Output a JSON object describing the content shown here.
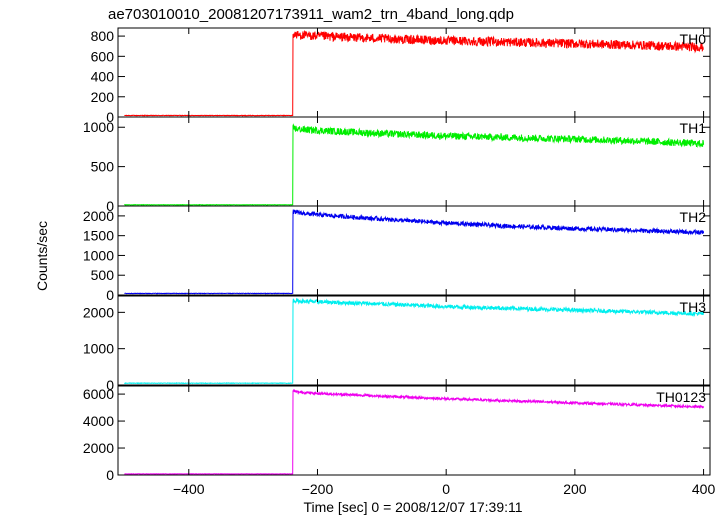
{
  "chart_data": {
    "type": "line",
    "title": "ae703010010_20081207173911_wam2_trn_4band_long.qdp",
    "xlabel": "Time [sec] 0 = 2008/12/07 17:39:11",
    "ylabel": "Counts/sec",
    "xlim": [
      -510,
      410
    ],
    "x_ticks": [
      -400,
      -200,
      0,
      200,
      400
    ],
    "x_tick_labels": [
      "−400",
      "−200",
      "0",
      "200",
      "400"
    ],
    "onset_x": -238,
    "panels": [
      {
        "label": "TH0",
        "color": "#ff0000",
        "ylim": [
          0,
          880
        ],
        "y_ticks": [
          0,
          200,
          400,
          600,
          800
        ],
        "y_tick_labels": [
          "0",
          "200",
          "400",
          "600",
          "800"
        ],
        "pre_level": 15,
        "profile_x": [
          -238,
          -230,
          -200,
          -100,
          0,
          100,
          200,
          300,
          400
        ],
        "profile_y": [
          820,
          810,
          800,
          775,
          755,
          740,
          725,
          710,
          690
        ],
        "noise": 45
      },
      {
        "label": "TH1",
        "color": "#00ee00",
        "ylim": [
          0,
          1130
        ],
        "y_ticks": [
          0,
          500,
          1000
        ],
        "y_tick_labels": [
          "0",
          "500",
          "1000"
        ],
        "pre_level": 15,
        "profile_x": [
          -238,
          -230,
          -200,
          -100,
          0,
          100,
          200,
          300,
          400
        ],
        "profile_y": [
          990,
          975,
          960,
          920,
          890,
          870,
          850,
          825,
          790
        ],
        "noise": 45
      },
      {
        "label": "TH2",
        "color": "#0000ee",
        "ylim": [
          0,
          2250
        ],
        "y_ticks": [
          0,
          500,
          1000,
          1500,
          2000
        ],
        "y_tick_labels": [
          "0",
          "500",
          "1000",
          "1500",
          "2000"
        ],
        "pre_level": 40,
        "profile_x": [
          -238,
          -230,
          -200,
          -100,
          0,
          100,
          200,
          300,
          400
        ],
        "profile_y": [
          2110,
          2080,
          2030,
          1920,
          1820,
          1740,
          1680,
          1630,
          1580
        ],
        "noise": 55
      },
      {
        "label": "TH3",
        "color": "#00eeee",
        "ylim": [
          0,
          2450
        ],
        "y_ticks": [
          0,
          1000,
          2000
        ],
        "y_tick_labels": [
          "0",
          "1000",
          "2000"
        ],
        "pre_level": 50,
        "profile_x": [
          -238,
          -230,
          -200,
          -100,
          0,
          100,
          200,
          300,
          400
        ],
        "profile_y": [
          2330,
          2310,
          2290,
          2230,
          2160,
          2110,
          2060,
          2010,
          1960
        ],
        "noise": 55
      },
      {
        "label": "TH0123",
        "color": "#ee00ee",
        "ylim": [
          0,
          6600
        ],
        "y_ticks": [
          0,
          2000,
          4000,
          6000
        ],
        "y_tick_labels": [
          "0",
          "2000",
          "4000",
          "6000"
        ],
        "pre_level": 80,
        "profile_x": [
          -238,
          -230,
          -200,
          -100,
          0,
          100,
          200,
          300,
          400
        ],
        "profile_y": [
          6250,
          6150,
          6050,
          5850,
          5650,
          5500,
          5350,
          5200,
          5050
        ],
        "noise": 90
      }
    ]
  }
}
